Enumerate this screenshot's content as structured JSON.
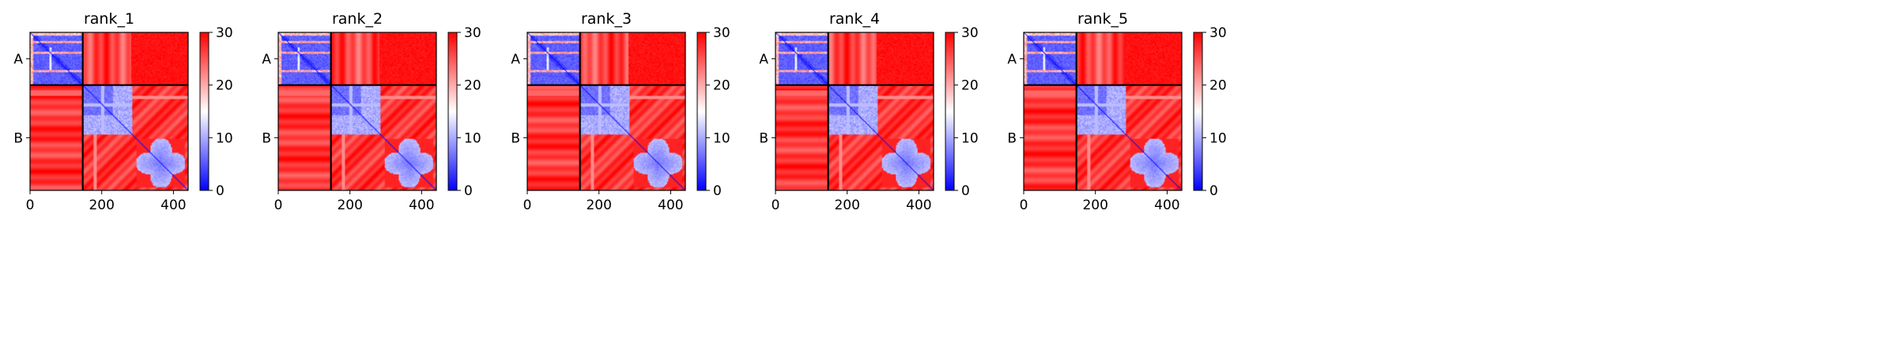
{
  "chart_data": {
    "type": "heatmap",
    "description_free": true,
    "colormap": {
      "min_color": "#0000ff",
      "mid_color": "#ffffff",
      "max_color": "#ff0000"
    },
    "colorbar": {
      "min": 0,
      "max": 30,
      "ticks": [
        0,
        10,
        20,
        30
      ],
      "tick_labels": [
        "0",
        "10",
        "20",
        "30"
      ]
    },
    "xlim": [
      0,
      441
    ],
    "x_ticks": [
      0,
      200,
      400
    ],
    "x_tick_labels": [
      "0",
      "200",
      "400"
    ],
    "chains": [
      {
        "label": "A",
        "start": 0,
        "end": 147
      },
      {
        "label": "B",
        "start": 147,
        "end": 441
      }
    ],
    "panels": [
      {
        "title": "rank_1"
      },
      {
        "title": "rank_2"
      },
      {
        "title": "rank_3"
      },
      {
        "title": "rank_4"
      },
      {
        "title": "rank_5"
      }
    ]
  }
}
